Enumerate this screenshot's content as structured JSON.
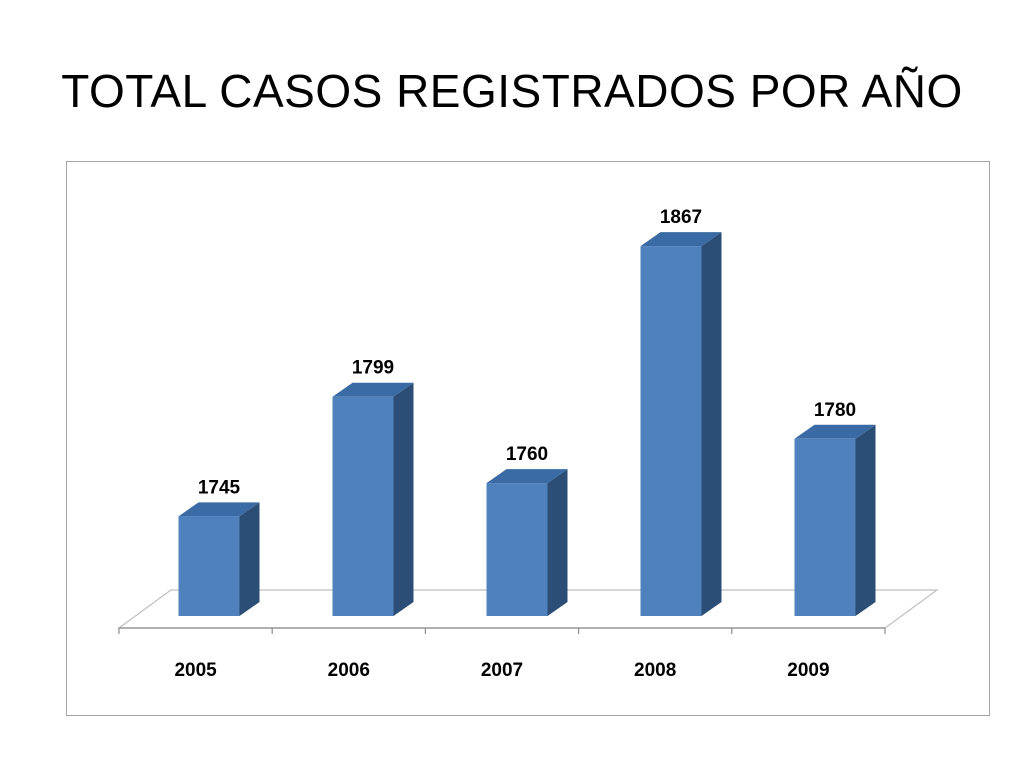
{
  "slide": {
    "title": "TOTAL CASOS REGISTRADOS POR AÑO"
  },
  "chart_data": {
    "type": "bar",
    "style": "3d-column",
    "title": "",
    "xlabel": "",
    "ylabel": "",
    "categories": [
      "2005",
      "2006",
      "2007",
      "2008",
      "2009"
    ],
    "values": [
      1745,
      1799,
      1760,
      1867,
      1780
    ],
    "data_labels": [
      "1745",
      "1799",
      "1760",
      "1867",
      "1780"
    ],
    "grid": false,
    "legend": "none",
    "colors": {
      "bar_front": "#4f81bd",
      "bar_side": "#2c4d75",
      "bar_top": "#3a6ba5",
      "floor_line": "#bfbfbf",
      "axis_line": "#8c8c8c"
    }
  }
}
